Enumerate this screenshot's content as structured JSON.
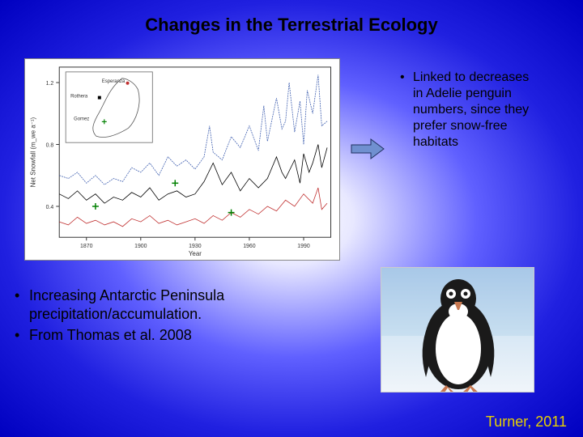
{
  "title": "Changes in the Terrestrial Ecology",
  "chart": {
    "type": "line",
    "xlabel": "Year",
    "ylabel": "Net Snowfall (m_we a⁻¹)",
    "xlim": [
      1855,
      2005
    ],
    "ylim": [
      0.2,
      1.3
    ],
    "xticks": [
      1870,
      1900,
      1930,
      1960,
      1990
    ],
    "yticks": [
      0.4,
      0.8,
      1.2
    ],
    "background_color": "#ffffff",
    "axis_color": "#333333",
    "label_fontsize": 8,
    "tick_fontsize": 7,
    "inset": {
      "labels": [
        "Esperanza",
        "Rothera",
        "Gomez"
      ],
      "label_fontsize": 6
    },
    "series": [
      {
        "name": "blue",
        "color": "#4060b0",
        "width": 0.8,
        "dash": "2,1",
        "data": [
          [
            1855,
            0.6
          ],
          [
            1860,
            0.58
          ],
          [
            1865,
            0.62
          ],
          [
            1870,
            0.55
          ],
          [
            1875,
            0.6
          ],
          [
            1880,
            0.54
          ],
          [
            1885,
            0.58
          ],
          [
            1890,
            0.56
          ],
          [
            1895,
            0.65
          ],
          [
            1900,
            0.62
          ],
          [
            1905,
            0.68
          ],
          [
            1910,
            0.6
          ],
          [
            1915,
            0.72
          ],
          [
            1920,
            0.66
          ],
          [
            1925,
            0.7
          ],
          [
            1930,
            0.64
          ],
          [
            1935,
            0.72
          ],
          [
            1938,
            0.92
          ],
          [
            1940,
            0.75
          ],
          [
            1945,
            0.7
          ],
          [
            1950,
            0.85
          ],
          [
            1955,
            0.78
          ],
          [
            1960,
            0.92
          ],
          [
            1965,
            0.76
          ],
          [
            1968,
            1.05
          ],
          [
            1970,
            0.82
          ],
          [
            1975,
            1.1
          ],
          [
            1978,
            0.9
          ],
          [
            1980,
            0.95
          ],
          [
            1982,
            1.2
          ],
          [
            1985,
            0.88
          ],
          [
            1988,
            1.08
          ],
          [
            1990,
            0.8
          ],
          [
            1992,
            1.15
          ],
          [
            1995,
            1.0
          ],
          [
            1998,
            1.25
          ],
          [
            2000,
            0.92
          ],
          [
            2003,
            0.95
          ]
        ]
      },
      {
        "name": "black",
        "color": "#000000",
        "width": 0.8,
        "dash": "none",
        "data": [
          [
            1855,
            0.48
          ],
          [
            1860,
            0.45
          ],
          [
            1865,
            0.5
          ],
          [
            1870,
            0.44
          ],
          [
            1875,
            0.48
          ],
          [
            1880,
            0.42
          ],
          [
            1885,
            0.46
          ],
          [
            1890,
            0.44
          ],
          [
            1895,
            0.49
          ],
          [
            1900,
            0.46
          ],
          [
            1905,
            0.52
          ],
          [
            1910,
            0.44
          ],
          [
            1915,
            0.48
          ],
          [
            1920,
            0.5
          ],
          [
            1925,
            0.46
          ],
          [
            1930,
            0.48
          ],
          [
            1935,
            0.56
          ],
          [
            1940,
            0.68
          ],
          [
            1945,
            0.54
          ],
          [
            1950,
            0.62
          ],
          [
            1955,
            0.5
          ],
          [
            1960,
            0.58
          ],
          [
            1965,
            0.52
          ],
          [
            1970,
            0.58
          ],
          [
            1975,
            0.72
          ],
          [
            1978,
            0.62
          ],
          [
            1980,
            0.58
          ],
          [
            1985,
            0.7
          ],
          [
            1988,
            0.55
          ],
          [
            1990,
            0.74
          ],
          [
            1993,
            0.62
          ],
          [
            1995,
            0.68
          ],
          [
            1998,
            0.8
          ],
          [
            2000,
            0.65
          ],
          [
            2003,
            0.78
          ]
        ]
      },
      {
        "name": "red",
        "color": "#c03030",
        "width": 0.8,
        "dash": "none",
        "data": [
          [
            1855,
            0.3
          ],
          [
            1860,
            0.28
          ],
          [
            1865,
            0.33
          ],
          [
            1870,
            0.29
          ],
          [
            1875,
            0.31
          ],
          [
            1880,
            0.28
          ],
          [
            1885,
            0.3
          ],
          [
            1890,
            0.27
          ],
          [
            1895,
            0.32
          ],
          [
            1900,
            0.3
          ],
          [
            1905,
            0.34
          ],
          [
            1910,
            0.29
          ],
          [
            1915,
            0.31
          ],
          [
            1920,
            0.28
          ],
          [
            1925,
            0.3
          ],
          [
            1930,
            0.32
          ],
          [
            1935,
            0.29
          ],
          [
            1940,
            0.34
          ],
          [
            1945,
            0.31
          ],
          [
            1950,
            0.36
          ],
          [
            1955,
            0.33
          ],
          [
            1960,
            0.38
          ],
          [
            1965,
            0.35
          ],
          [
            1970,
            0.4
          ],
          [
            1975,
            0.37
          ],
          [
            1980,
            0.44
          ],
          [
            1985,
            0.4
          ],
          [
            1990,
            0.48
          ],
          [
            1995,
            0.42
          ],
          [
            1998,
            0.52
          ],
          [
            2000,
            0.38
          ],
          [
            2003,
            0.42
          ]
        ]
      }
    ],
    "markers": [
      {
        "x": 1875,
        "y": 0.4,
        "color": "#008000",
        "symbol": "plus"
      },
      {
        "x": 1919,
        "y": 0.55,
        "color": "#008000",
        "symbol": "plus"
      },
      {
        "x": 1950,
        "y": 0.36,
        "color": "#008000",
        "symbol": "plus"
      }
    ]
  },
  "arrow": {
    "fill_color": "#7090d0",
    "stroke_color": "#203060"
  },
  "bullets_right": [
    "Linked to decreases in Adelie penguin numbers, since they prefer snow-free habitats"
  ],
  "bullets_left": [
    "Increasing Antarctic Peninsula precipitation/accumulation.",
    "From Thomas et al. 2008"
  ],
  "penguin": {
    "body_color": "#1a1a1a",
    "belly_color": "#ffffff",
    "beak_color": "#c87850",
    "eye_ring_color": "#ffffff",
    "sky_color": "#a8c8e8",
    "ground_color": "#e8f0f8"
  },
  "citation": "Turner, 2011",
  "citation_color": "#e8d000"
}
